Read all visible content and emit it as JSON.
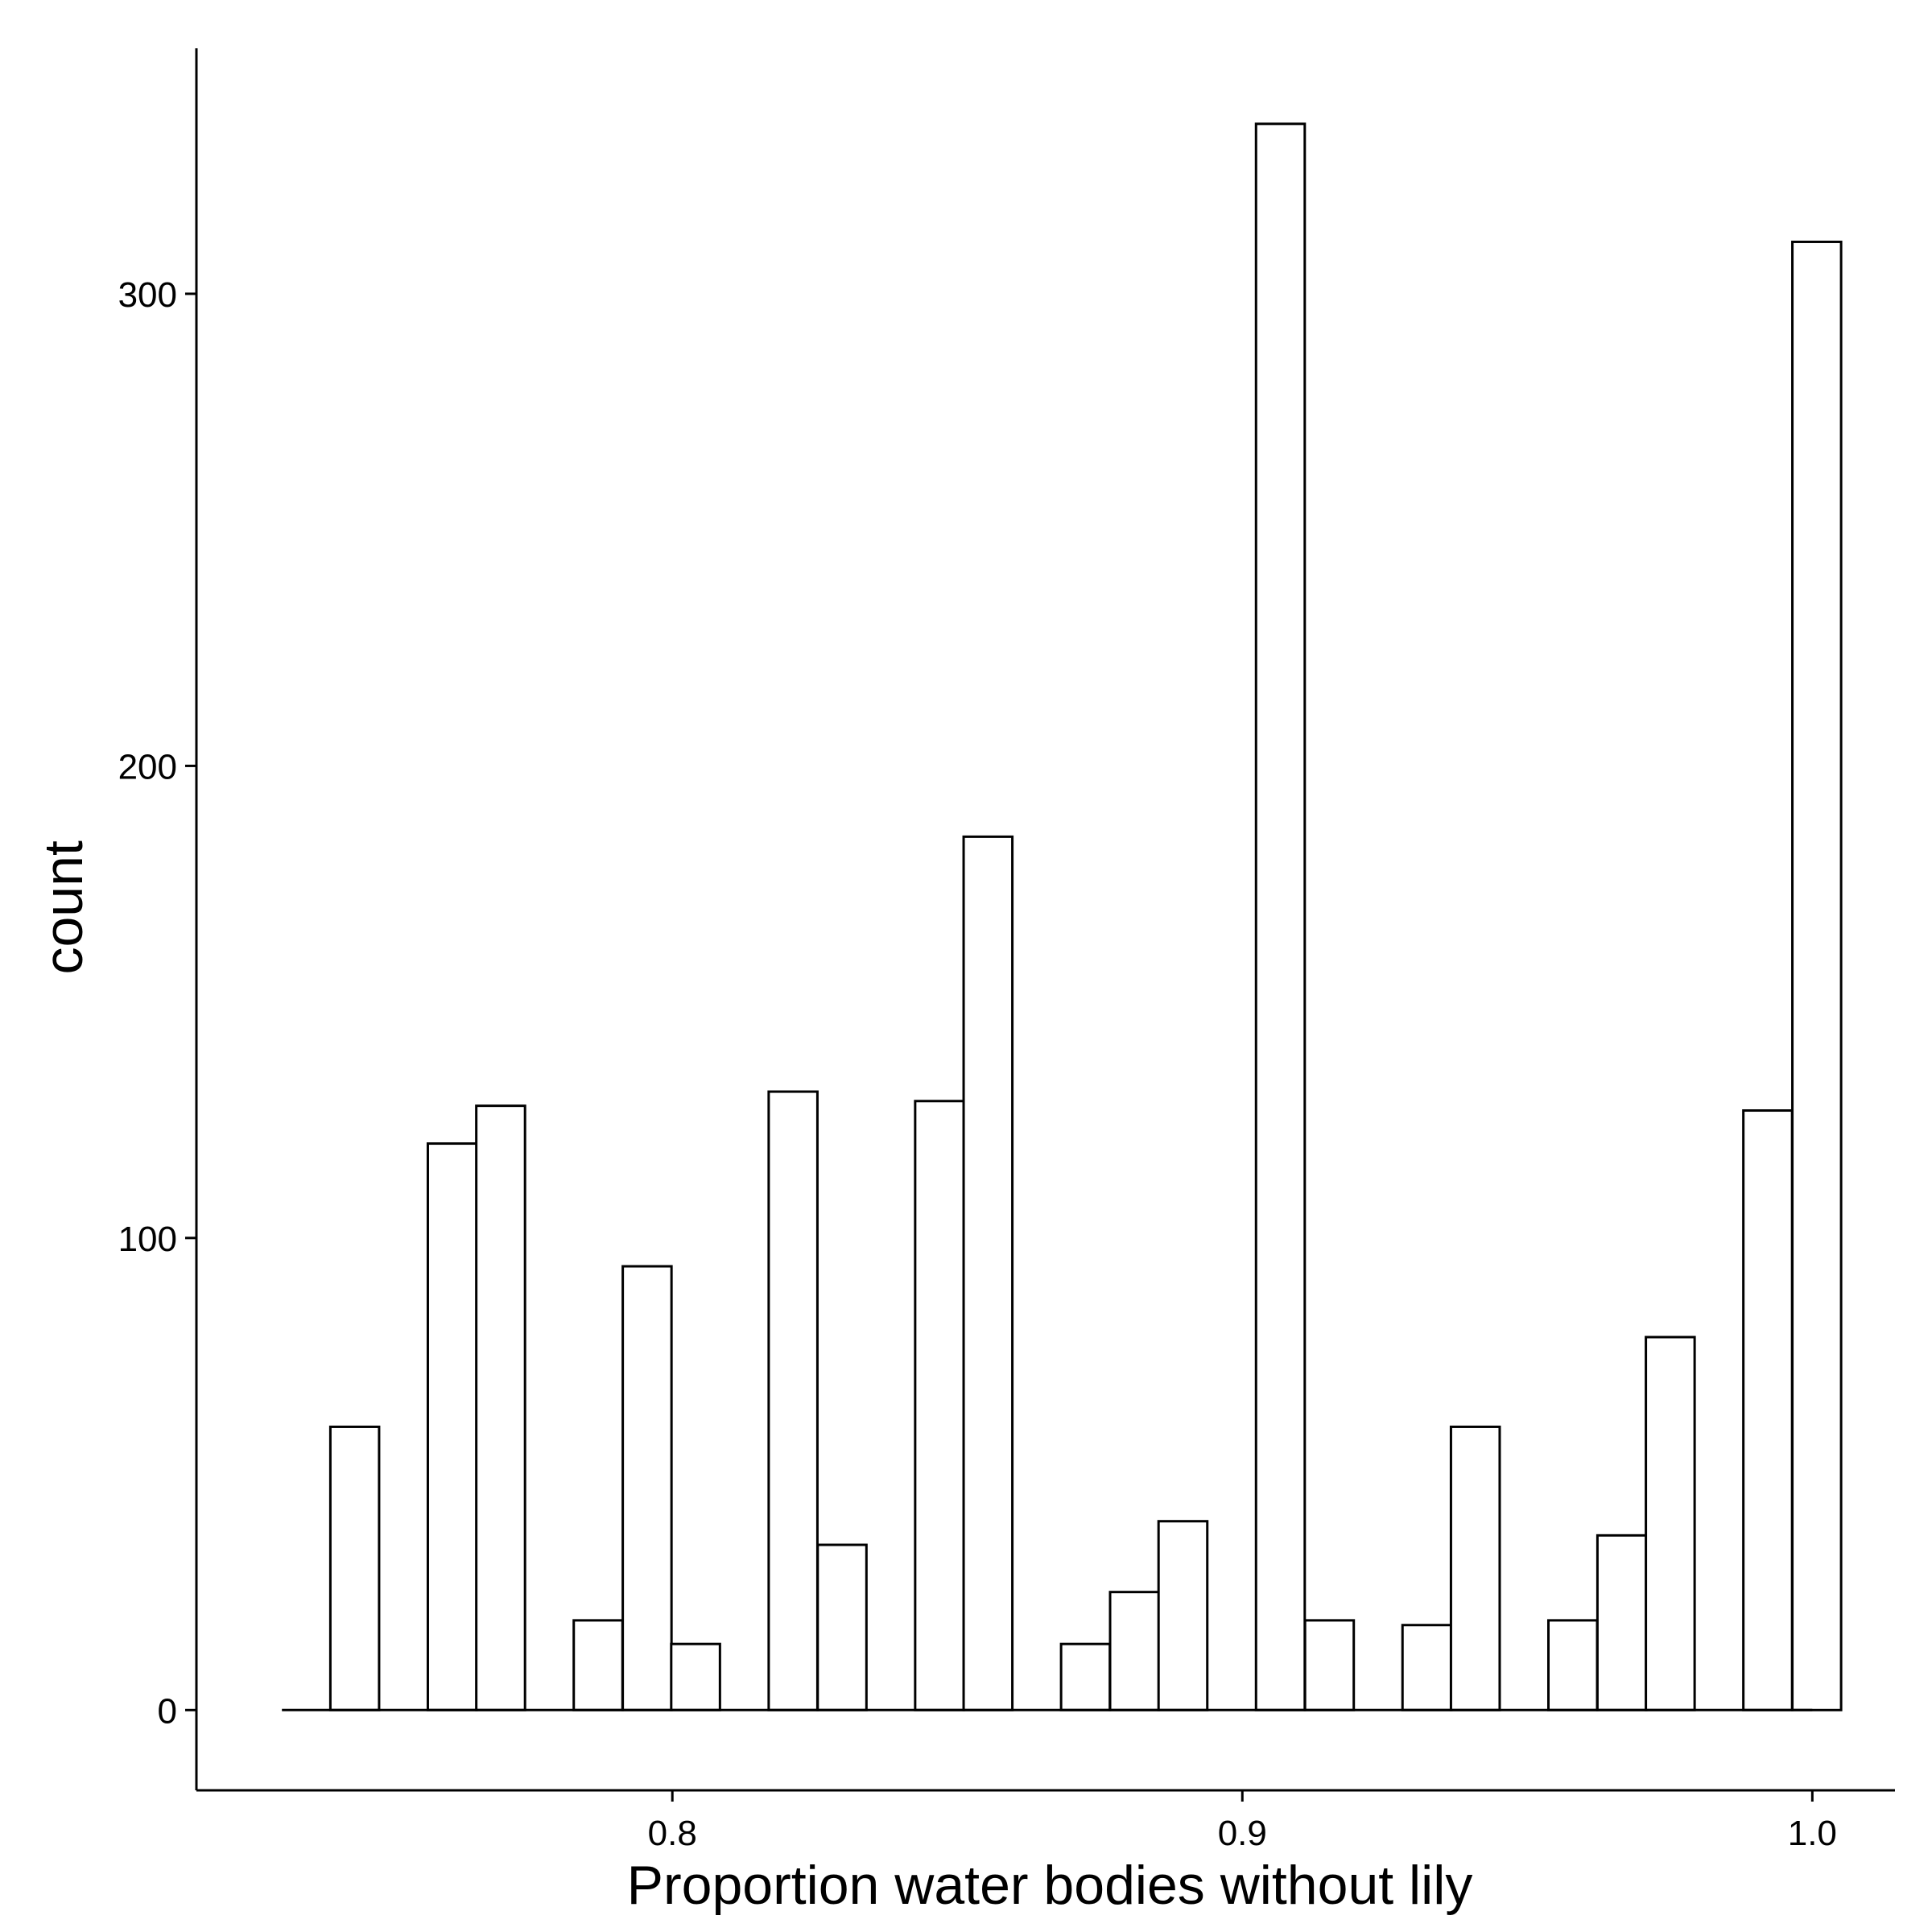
{
  "chart_data": {
    "type": "bar",
    "xlabel": "Proportion water bodies without lily",
    "ylabel": "count",
    "xlim": [
      0.7165,
      1.0145
    ],
    "ylim": [
      -17,
      352
    ],
    "x_ticks": [
      {
        "value": 0.8,
        "label": "0.8"
      },
      {
        "value": 0.9,
        "label": "0.9"
      },
      {
        "value": 1.0,
        "label": "1.0"
      }
    ],
    "y_ticks": [
      {
        "value": 0,
        "label": "0"
      },
      {
        "value": 100,
        "label": "100"
      },
      {
        "value": 200,
        "label": "200"
      },
      {
        "value": 300,
        "label": "300"
      }
    ],
    "baseline": {
      "from": 0.7315,
      "to": 1.0
    },
    "bin_width": 0.00855,
    "bins": [
      {
        "x0": 0.74,
        "count": 60
      },
      {
        "x0": 0.7571,
        "count": 120
      },
      {
        "x0": 0.7656,
        "count": 128
      },
      {
        "x0": 0.7827,
        "count": 19
      },
      {
        "x0": 0.7913,
        "count": 94
      },
      {
        "x0": 0.7998,
        "count": 14
      },
      {
        "x0": 0.8169,
        "count": 131
      },
      {
        "x0": 0.8255,
        "count": 35
      },
      {
        "x0": 0.8426,
        "count": 129
      },
      {
        "x0": 0.8511,
        "count": 185
      },
      {
        "x0": 0.8682,
        "count": 14
      },
      {
        "x0": 0.8768,
        "count": 25
      },
      {
        "x0": 0.8853,
        "count": 40
      },
      {
        "x0": 0.9024,
        "count": 336
      },
      {
        "x0": 0.911,
        "count": 19
      },
      {
        "x0": 0.9281,
        "count": 18
      },
      {
        "x0": 0.9366,
        "count": 60
      },
      {
        "x0": 0.9537,
        "count": 19
      },
      {
        "x0": 0.9623,
        "count": 37
      },
      {
        "x0": 0.9708,
        "count": 79
      },
      {
        "x0": 0.9879,
        "count": 127
      },
      {
        "x0": 0.9965,
        "count": 311
      }
    ]
  }
}
